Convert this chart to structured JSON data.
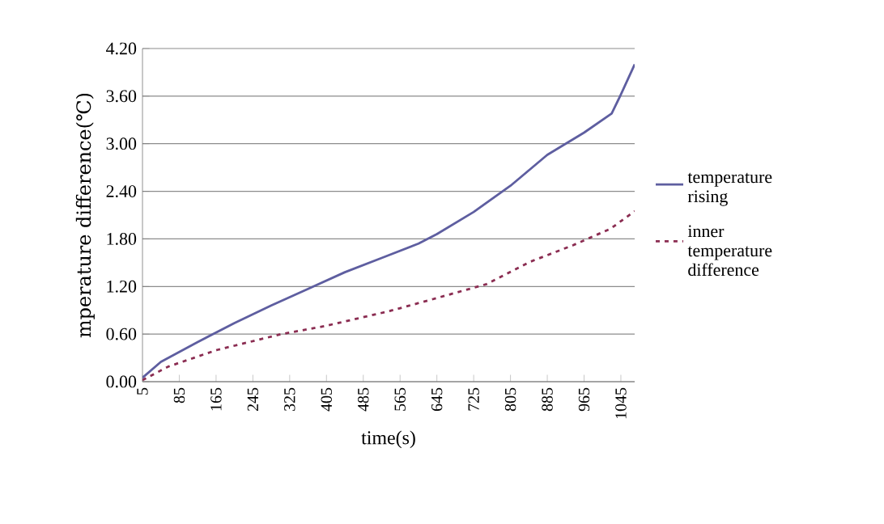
{
  "chart_data": {
    "type": "line",
    "xlabel": "time(s)",
    "ylabel": "mperature difference(℃)",
    "x": [
      5,
      45,
      125,
      205,
      285,
      365,
      445,
      525,
      605,
      645,
      725,
      805,
      885,
      965,
      1025,
      1045,
      1075
    ],
    "series": [
      {
        "name": "temperature rising",
        "color": "#5e5ea0",
        "line_style": "solid",
        "values": [
          0.05,
          0.25,
          0.5,
          0.74,
          0.96,
          1.17,
          1.38,
          1.56,
          1.74,
          1.86,
          2.14,
          2.47,
          2.86,
          3.14,
          3.38,
          3.62,
          4.0
        ]
      },
      {
        "name": "inner temperature difference",
        "color": "#8b2d52",
        "line_style": "dashed",
        "x": [
          5,
          61,
          167,
          307,
          401,
          542,
          636,
          753,
          847,
          941,
          1023,
          1075
        ],
        "values": [
          0.02,
          0.19,
          0.4,
          0.6,
          0.7,
          0.89,
          1.04,
          1.23,
          1.51,
          1.72,
          1.93,
          2.15
        ]
      }
    ],
    "xlim": [
      5,
      1075
    ],
    "xticks": [
      5,
      85,
      165,
      245,
      325,
      405,
      485,
      565,
      645,
      725,
      805,
      885,
      965,
      1045
    ],
    "ylim": [
      0,
      4.2
    ],
    "yticks": [
      {
        "value": 0,
        "label": "0.00"
      },
      {
        "value": 0.6,
        "label": "0.60"
      },
      {
        "value": 1.2,
        "label": "1.20"
      },
      {
        "value": 1.8,
        "label": "1.80"
      },
      {
        "value": 2.4,
        "label": "2.40"
      },
      {
        "value": 3.0,
        "label": "3.00"
      },
      {
        "value": 3.6,
        "label": "3.60"
      },
      {
        "value": 4.2,
        "label": "4.20"
      }
    ],
    "grid": "y",
    "legend": "right",
    "marker": "none"
  }
}
